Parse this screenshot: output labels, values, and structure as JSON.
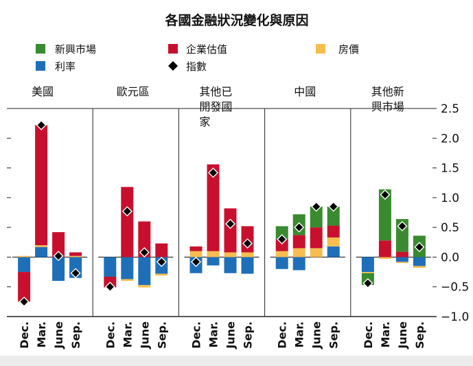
{
  "chart_data": {
    "type": "bar",
    "stacked": true,
    "title": "各國金融狀況變化與原因",
    "legend": {
      "placement": "top",
      "items": [
        {
          "key": "emerging",
          "label": "新興市場",
          "color": "#3a8a2f",
          "marker": "square"
        },
        {
          "key": "equity",
          "label": "企業估值",
          "color": "#c8102e",
          "marker": "square"
        },
        {
          "key": "house",
          "label": "房價",
          "color": "#f6be4f",
          "marker": "square"
        },
        {
          "key": "rates",
          "label": "利率",
          "color": "#1f6fb8",
          "marker": "square"
        },
        {
          "key": "index",
          "label": "指數",
          "color": "#000000",
          "marker": "diamond"
        }
      ]
    },
    "categories": [
      "Dec.",
      "Mar.",
      "June",
      "Sep."
    ],
    "ylim": [
      -1.0,
      2.5
    ],
    "yticks": [
      -1.0,
      -0.5,
      0.0,
      0.5,
      1.0,
      1.5,
      2.0,
      2.5
    ],
    "ytick_labels": [
      "−1.0",
      "−0.5",
      "0.0",
      "0.5",
      "1.0",
      "1.5",
      "2.0",
      "2.5"
    ],
    "panels": [
      {
        "title": [
          "美國"
        ],
        "bars": [
          {
            "rates": -0.25,
            "equity": -0.5,
            "house": 0.02,
            "emerging": 0,
            "index": -0.75
          },
          {
            "rates": 0.17,
            "house": 0.03,
            "equity": 2.02,
            "emerging": 0,
            "index": 2.22
          },
          {
            "rates": -0.4,
            "house": 0,
            "equity": 0.42,
            "emerging": 0,
            "index": 0.02
          },
          {
            "rates": -0.35,
            "house": 0.02,
            "equity": 0.06,
            "emerging": 0,
            "index": -0.27
          }
        ]
      },
      {
        "title": [
          "歐元區"
        ],
        "bars": [
          {
            "rates": -0.33,
            "equity": -0.18,
            "house": 0,
            "emerging": 0,
            "index": -0.5
          },
          {
            "rates": -0.37,
            "house": -0.03,
            "equity": 1.18,
            "emerging": 0,
            "index": 0.77
          },
          {
            "rates": -0.47,
            "house": -0.04,
            "equity": 0.6,
            "emerging": 0,
            "index": 0.08
          },
          {
            "rates": -0.28,
            "house": -0.03,
            "equity": 0.23,
            "emerging": 0,
            "index": -0.08
          }
        ]
      },
      {
        "title": [
          "其他已",
          "開發國",
          "家"
        ],
        "bars": [
          {
            "rates": -0.27,
            "house": 0.1,
            "equity": 0.08,
            "emerging": 0,
            "index": -0.08
          },
          {
            "rates": -0.14,
            "house": 0.1,
            "equity": 1.46,
            "emerging": 0,
            "index": 1.42
          },
          {
            "rates": -0.27,
            "house": 0.08,
            "equity": 0.74,
            "emerging": 0,
            "index": 0.56
          },
          {
            "rates": -0.28,
            "house": 0.08,
            "equity": 0.44,
            "emerging": 0,
            "index": 0.23
          }
        ]
      },
      {
        "title": [
          "中國"
        ],
        "bars": [
          {
            "rates": -0.2,
            "house": 0.1,
            "equity": 0.2,
            "emerging": 0.22,
            "index": 0.3
          },
          {
            "rates": -0.22,
            "house": 0.15,
            "equity": 0.22,
            "emerging": 0.35,
            "index": 0.5
          },
          {
            "rates": 0,
            "house": 0.15,
            "equity": 0.35,
            "emerging": 0.35,
            "index": 0.85
          },
          {
            "rates": 0.18,
            "house": 0.15,
            "equity": 0.2,
            "emerging": 0.32,
            "index": 0.85
          }
        ]
      },
      {
        "title": [
          "其他新",
          "興市場"
        ],
        "bars": [
          {
            "rates": -0.25,
            "house": -0.02,
            "equity": 0,
            "emerging": -0.2,
            "index": -0.44
          },
          {
            "rates": 0,
            "house": -0.03,
            "equity": 0.28,
            "emerging": 0.86,
            "index": 1.05
          },
          {
            "rates": -0.08,
            "house": -0.02,
            "equity": 0.09,
            "emerging": 0.55,
            "index": 0.52
          },
          {
            "rates": -0.15,
            "house": -0.03,
            "equity": 0,
            "emerging": 0.36,
            "index": 0.17
          }
        ]
      }
    ]
  }
}
